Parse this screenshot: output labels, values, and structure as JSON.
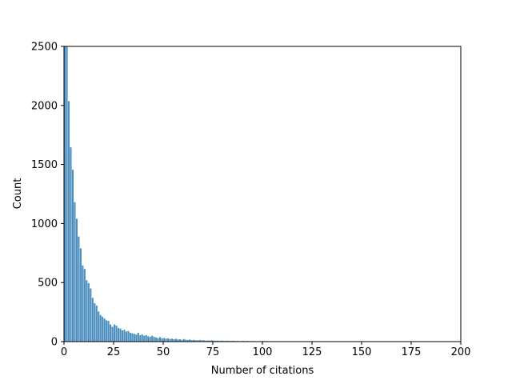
{
  "chart_data": {
    "type": "bar",
    "title": "",
    "xlabel": "Number of citations",
    "ylabel": "Count",
    "xlim": [
      0,
      200
    ],
    "ylim": [
      0,
      2500
    ],
    "grid": false,
    "legend": null,
    "bar_color": "#4c8fbf",
    "bin_width": 1,
    "x_ticks": [
      0,
      25,
      50,
      75,
      100,
      125,
      150,
      175,
      200
    ],
    "y_ticks": [
      0,
      500,
      1000,
      1500,
      2000,
      2500
    ],
    "x": [
      0,
      1,
      2,
      3,
      4,
      5,
      6,
      7,
      8,
      9,
      10,
      11,
      12,
      13,
      14,
      15,
      16,
      17,
      18,
      19,
      20,
      21,
      22,
      23,
      24,
      25,
      26,
      27,
      28,
      29,
      30,
      31,
      32,
      33,
      34,
      35,
      36,
      37,
      38,
      39,
      40,
      41,
      42,
      43,
      44,
      45,
      46,
      47,
      48,
      49,
      50,
      51,
      52,
      53,
      54,
      55,
      56,
      57,
      58,
      59,
      60,
      61,
      62,
      63,
      64,
      65,
      66,
      67,
      68,
      69,
      70,
      71,
      72,
      73,
      74,
      75,
      76,
      77,
      78,
      79,
      80,
      81,
      82,
      83,
      84,
      85,
      86,
      87,
      88,
      89,
      90,
      91,
      92,
      93,
      94,
      95,
      96,
      97,
      98,
      99,
      100,
      101,
      102,
      103,
      104,
      105,
      106,
      107,
      108,
      109,
      110,
      111,
      112,
      113,
      114,
      115,
      116,
      117,
      118,
      119,
      120,
      121,
      122,
      123,
      124,
      125,
      126,
      127,
      128,
      129,
      130,
      131,
      132,
      133,
      134,
      135,
      136,
      137,
      138,
      139,
      140,
      141,
      142,
      143,
      144,
      145
    ],
    "values": [
      2500,
      2500,
      2037,
      1645,
      1455,
      1180,
      1040,
      890,
      790,
      645,
      615,
      520,
      495,
      450,
      370,
      325,
      305,
      255,
      225,
      210,
      195,
      180,
      175,
      145,
      125,
      145,
      135,
      115,
      110,
      95,
      100,
      85,
      90,
      75,
      70,
      65,
      60,
      75,
      55,
      60,
      50,
      55,
      45,
      40,
      50,
      40,
      35,
      30,
      38,
      28,
      30,
      25,
      28,
      22,
      25,
      20,
      24,
      18,
      20,
      15,
      22,
      16,
      14,
      18,
      12,
      15,
      12,
      10,
      14,
      10,
      12,
      8,
      10,
      9,
      11,
      8,
      7,
      9,
      6,
      8,
      7,
      6,
      8,
      5,
      6,
      7,
      5,
      6,
      4,
      5,
      6,
      4,
      5,
      4,
      3,
      5,
      4,
      3,
      4,
      3,
      5,
      3,
      4,
      3,
      3,
      4,
      2,
      3,
      3,
      2,
      3,
      2,
      3,
      2,
      2,
      3,
      2,
      2,
      3,
      2,
      2,
      3,
      2,
      2,
      1,
      2,
      2,
      1,
      2,
      1,
      3,
      1,
      1,
      2,
      1,
      1,
      1,
      1,
      1,
      1,
      1,
      1,
      1,
      1,
      1,
      2
    ],
    "notes": "First bins exceed/clip at the 2500 y-limit"
  }
}
